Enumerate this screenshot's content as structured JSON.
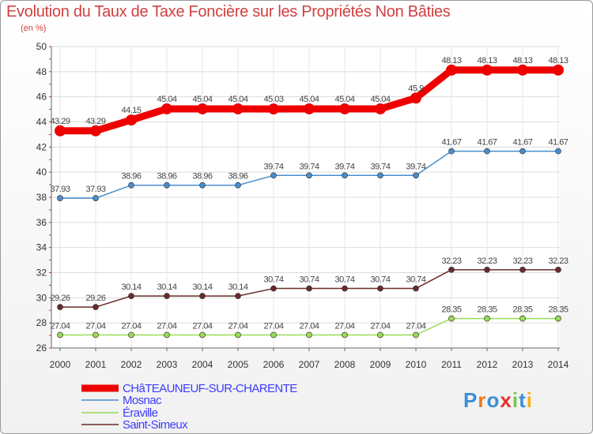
{
  "chart_data": {
    "type": "line",
    "title": "Evolution du Taux de Taxe Foncière sur les Propriétés Non Bâties",
    "ylabel": "(en %)",
    "xlabel": "",
    "ylim": [
      26,
      50
    ],
    "yticks": [
      26,
      28,
      30,
      32,
      34,
      36,
      38,
      40,
      42,
      44,
      46,
      48,
      50
    ],
    "categories": [
      "2000",
      "2001",
      "2002",
      "2003",
      "2004",
      "2005",
      "2006",
      "2007",
      "2008",
      "2009",
      "2010",
      "2011",
      "2012",
      "2013",
      "2014"
    ],
    "grid": true,
    "series": [
      {
        "name": "CHâTEAUNEUF-SUR-CHARENTE",
        "color": "#ee0000",
        "values": [
          43.29,
          43.29,
          44.15,
          45.04,
          45.04,
          45.04,
          45.03,
          45.04,
          45.04,
          45.04,
          45.9,
          48.13,
          48.13,
          48.13,
          48.13
        ],
        "labels": [
          "43.29",
          "43.29",
          "44.15",
          "45.04",
          "45.04",
          "45.04",
          "45.03",
          "45.04",
          "45.04",
          "45.04",
          "45.9",
          "48.13",
          "48.13",
          "48.13",
          "48.13"
        ]
      },
      {
        "name": "Mosnac",
        "color": "#4a8ecf",
        "values": [
          37.93,
          37.93,
          38.96,
          38.96,
          38.96,
          38.96,
          39.74,
          39.74,
          39.74,
          39.74,
          39.74,
          41.67,
          41.67,
          41.67,
          41.67
        ],
        "labels": [
          "37.93",
          "37.93",
          "38.96",
          "38.96",
          "38.96",
          "38.96",
          "39.74",
          "39.74",
          "39.74",
          "39.74",
          "39.74",
          "41.67",
          "41.67",
          "41.67",
          "41.67"
        ]
      },
      {
        "name": "Éraville",
        "color": "#99dd55",
        "values": [
          27.04,
          27.04,
          27.04,
          27.04,
          27.04,
          27.04,
          27.04,
          27.04,
          27.04,
          27.04,
          27.04,
          28.35,
          28.35,
          28.35,
          28.35
        ],
        "labels": [
          "27.04",
          "27.04",
          "27.04",
          "27.04",
          "27.04",
          "27.04",
          "27.04",
          "27.04",
          "27.04",
          "27.04",
          "27.04",
          "28.35",
          "28.35",
          "28.35",
          "28.35"
        ]
      },
      {
        "name": "Saint-Simeux",
        "color": "#6a2a2a",
        "values": [
          29.26,
          29.26,
          30.14,
          30.14,
          30.14,
          30.14,
          30.74,
          30.74,
          30.74,
          30.74,
          30.74,
          32.23,
          32.23,
          32.23,
          32.23
        ],
        "labels": [
          "29.26",
          "29.26",
          "30.14",
          "30.14",
          "30.14",
          "30.14",
          "30.74",
          "30.74",
          "30.74",
          "30.74",
          "30.74",
          "32.23",
          "32.23",
          "32.23",
          "32.23"
        ]
      }
    ]
  },
  "branding": {
    "logo_letters": [
      "P",
      "r",
      "o",
      "x",
      "i",
      "t",
      "i"
    ],
    "logo_colors": [
      "#3a8fd6",
      "#f07a1a",
      "#3a8fd6",
      "#e83030",
      "#7cc24a",
      "#3a8fd6",
      "#f0b41a"
    ]
  }
}
